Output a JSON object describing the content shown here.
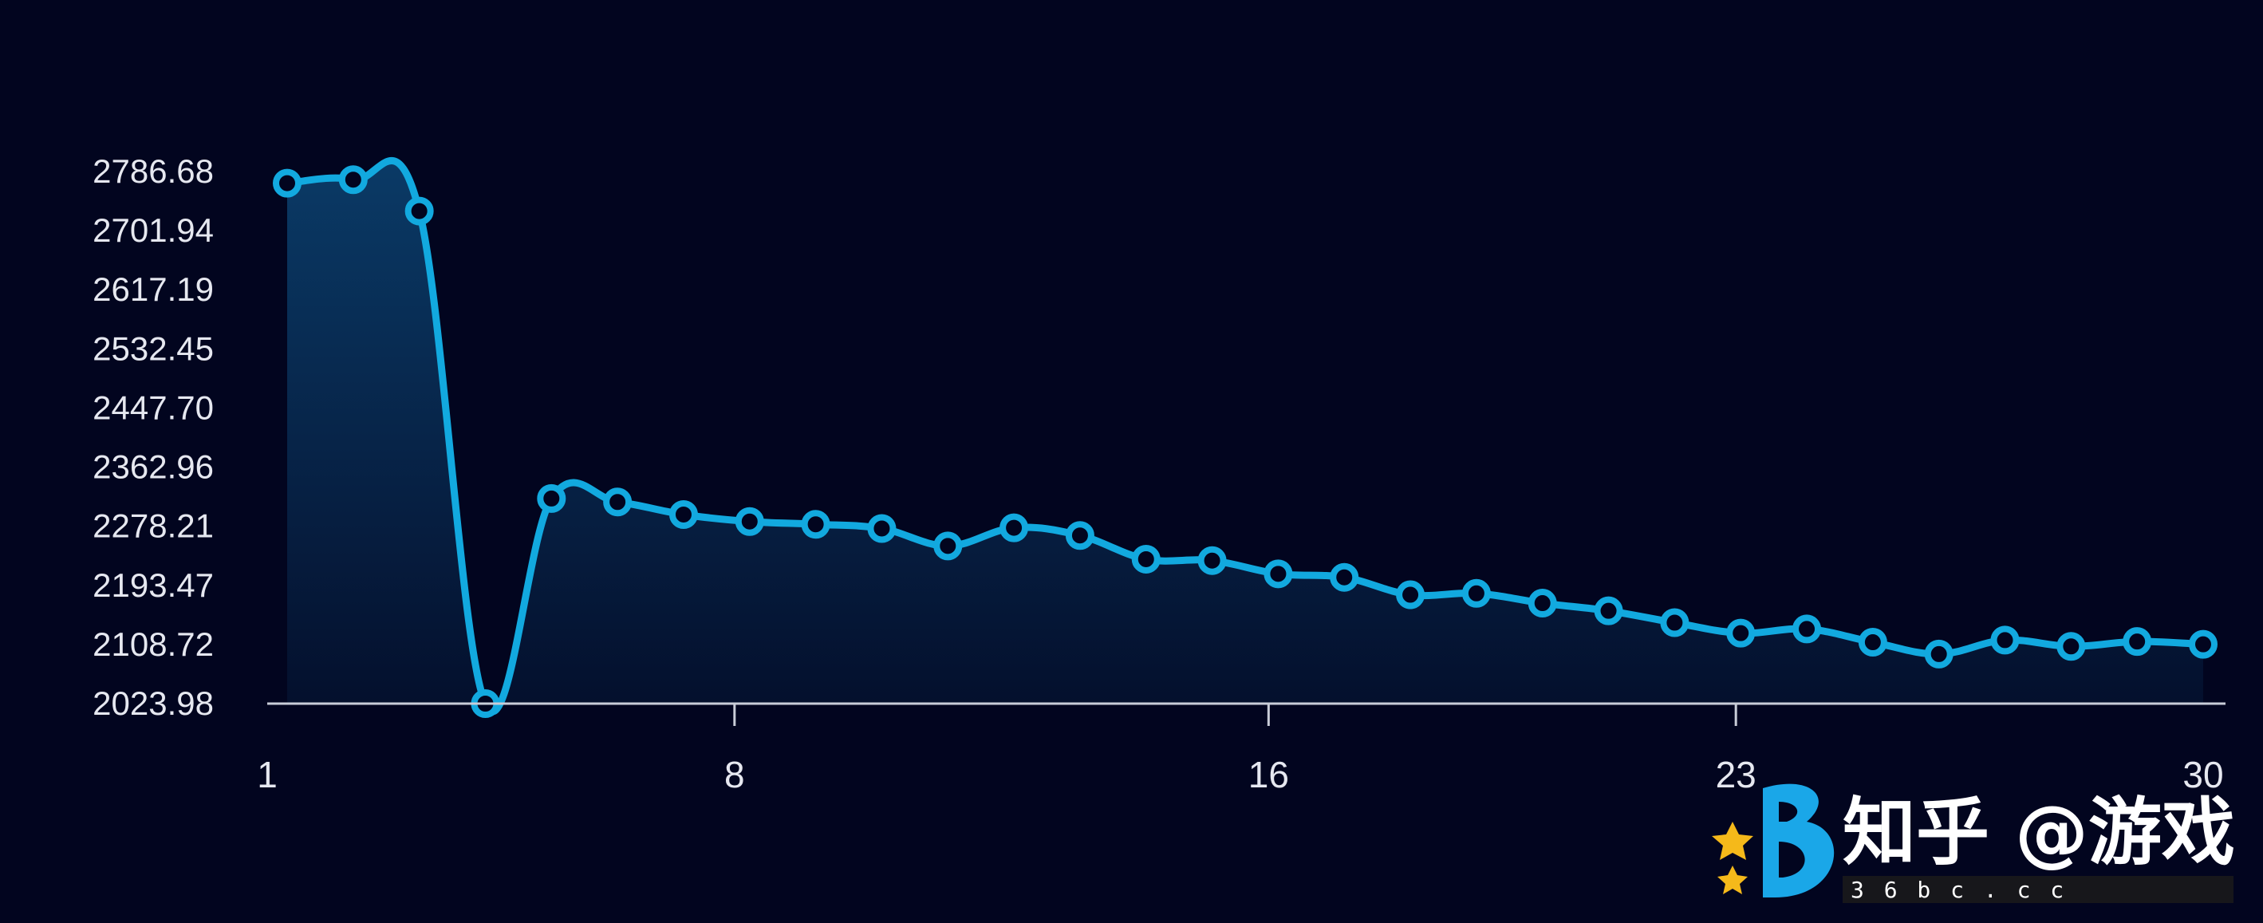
{
  "chart_data": {
    "type": "area",
    "title": "",
    "xlabel": "",
    "ylabel": "",
    "x": [
      1,
      2,
      3,
      4,
      5,
      6,
      7,
      8,
      9,
      10,
      11,
      12,
      13,
      14,
      15,
      16,
      17,
      18,
      19,
      20,
      21,
      22,
      23,
      24,
      25,
      26,
      27,
      28,
      29,
      30
    ],
    "series": [
      {
        "values": [
          2770,
          2775,
          2730,
          2023.98,
          2318,
          2313,
          2295,
          2285,
          2281,
          2275,
          2250,
          2276,
          2265,
          2231,
          2229,
          2210,
          2205,
          2180,
          2182,
          2168,
          2157,
          2140,
          2125,
          2131,
          2112,
          2095,
          2115,
          2106,
          2113,
          2109
        ]
      }
    ],
    "yticks": [
      "2023.98",
      "2108.72",
      "2193.47",
      "2278.21",
      "2362.96",
      "2447.70",
      "2532.45",
      "2617.19",
      "2701.94",
      "2786.68"
    ],
    "xticks": [
      "1",
      "8",
      "16",
      "23",
      "30"
    ],
    "ylim": [
      2023.98,
      2786.68
    ],
    "xlim": [
      1,
      30
    ],
    "grid": false,
    "colors": {
      "line": "#12a9df",
      "area_top": "#0a3a66",
      "area_bottom": "#040f2c",
      "axis": "#c9cdd8",
      "background": "#02051f"
    }
  },
  "watermark": {
    "title": "知乎 @游戏",
    "subtitle": "3 6 b c . c c",
    "icon": "b-star-logo-icon"
  }
}
